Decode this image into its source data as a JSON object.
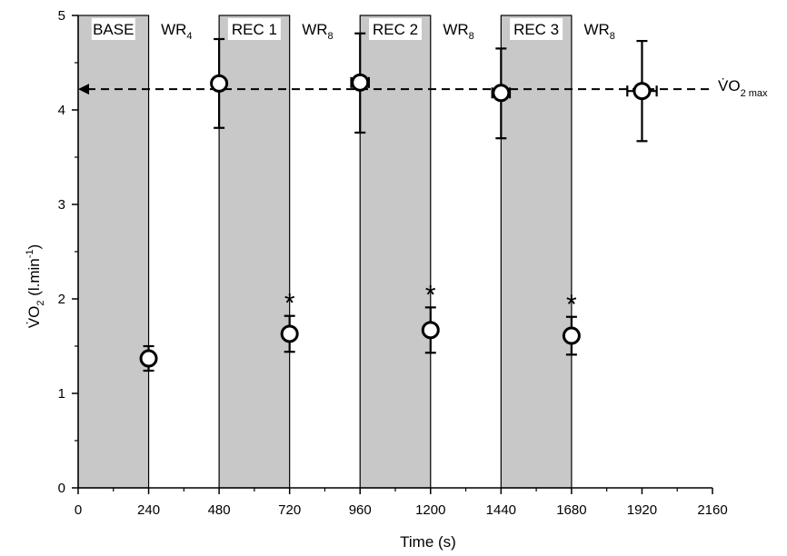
{
  "chart_data": {
    "type": "scatter",
    "xlabel": "Time (s)",
    "ylabel": {
      "main": "V̇O",
      "sub": "2",
      "unit": " (l.min",
      "sup": "-1",
      "close": ")"
    },
    "xlim": [
      0,
      2160
    ],
    "ylim": [
      0,
      5
    ],
    "xticks": [
      0,
      240,
      480,
      720,
      960,
      1200,
      1440,
      1680,
      1920,
      2160
    ],
    "yticks": [
      0,
      1,
      2,
      3,
      4,
      5
    ],
    "grid": false,
    "shaded_bands": [
      {
        "label": "BASE",
        "from": 0,
        "to": 240
      },
      {
        "label": "REC 1",
        "from": 480,
        "to": 720
      },
      {
        "label": "REC 2",
        "from": 960,
        "to": 1200
      },
      {
        "label": "REC 3",
        "from": 1440,
        "to": 1680
      }
    ],
    "work_labels": [
      {
        "text": "WR",
        "sub": "4",
        "x": 360
      },
      {
        "text": "WR",
        "sub": "8",
        "x": 840
      },
      {
        "text": "WR",
        "sub": "8",
        "x": 1320
      },
      {
        "text": "WR",
        "sub": "8",
        "x": 1800
      }
    ],
    "reference_line": {
      "y": 4.22,
      "label": "V̇O",
      "sub": "2 max"
    },
    "points": [
      {
        "x": 240,
        "y": 1.37,
        "yerr_up": 0.13,
        "yerr_down": 0.13,
        "xerr": 0,
        "marked": false
      },
      {
        "x": 480,
        "y": 4.28,
        "yerr_up": 0.47,
        "yerr_down": 0.47,
        "xerr": 10,
        "marked": false
      },
      {
        "x": 720,
        "y": 1.63,
        "yerr_up": 0.19,
        "yerr_down": 0.19,
        "xerr": 0,
        "marked": true
      },
      {
        "x": 960,
        "y": 4.29,
        "yerr_up": 0.52,
        "yerr_down": 0.53,
        "xerr": 30,
        "marked": false
      },
      {
        "x": 1200,
        "y": 1.67,
        "yerr_up": 0.24,
        "yerr_down": 0.24,
        "xerr": 0,
        "marked": true
      },
      {
        "x": 1440,
        "y": 4.18,
        "yerr_up": 0.47,
        "yerr_down": 0.48,
        "xerr": 30,
        "marked": false
      },
      {
        "x": 1680,
        "y": 1.61,
        "yerr_up": 0.2,
        "yerr_down": 0.2,
        "xerr": 0,
        "marked": true
      },
      {
        "x": 1920,
        "y": 4.2,
        "yerr_up": 0.53,
        "yerr_down": 0.53,
        "xerr": 50,
        "marked": false
      }
    ],
    "significance_marker": "*"
  }
}
